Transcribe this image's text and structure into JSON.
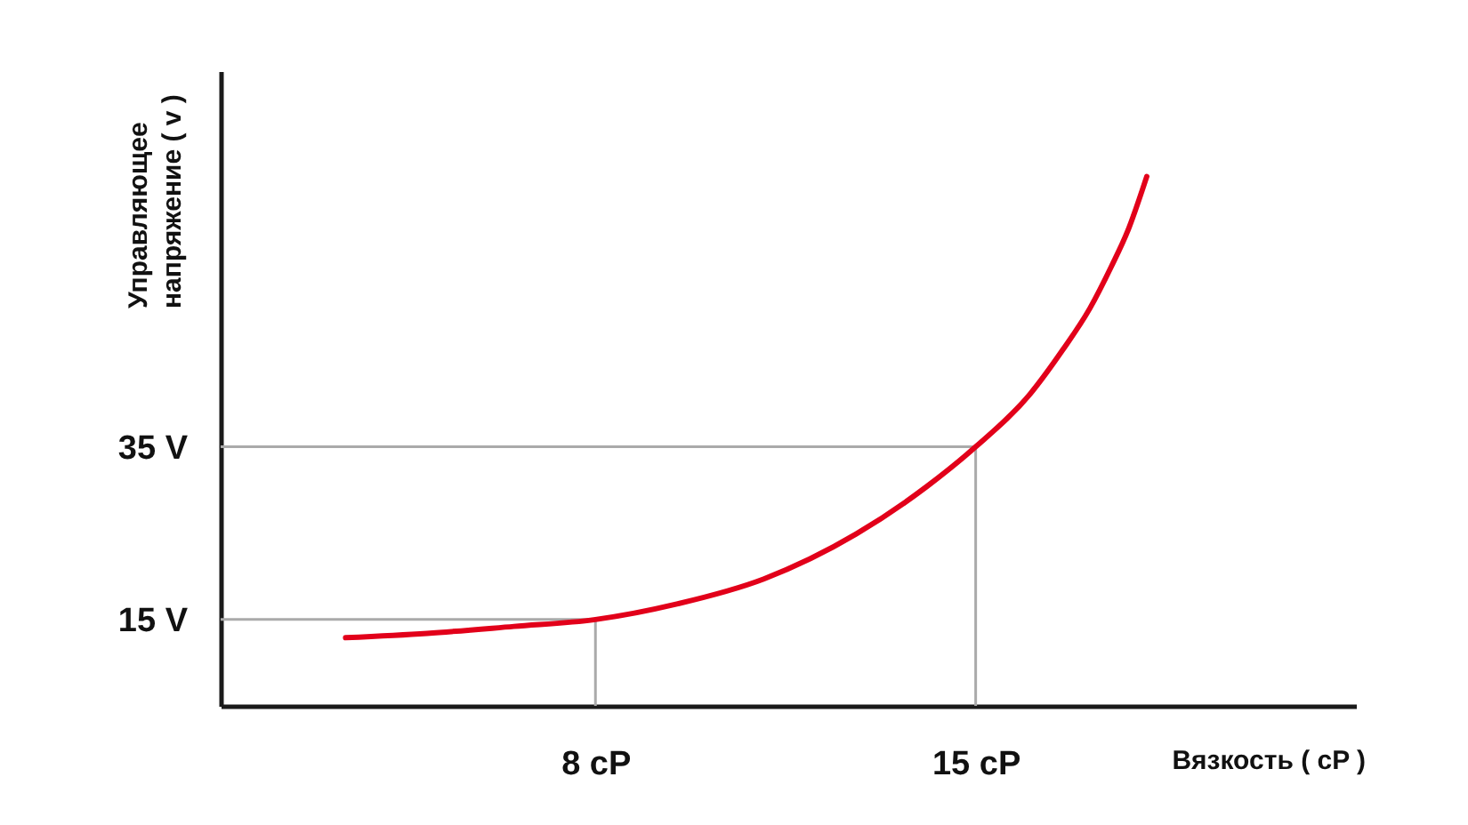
{
  "chart_data": {
    "type": "line",
    "xlabel": "Вязкость ( cP )",
    "ylabel": "Управляющее напряжение ( v )",
    "x": [
      3.4,
      4.9,
      6.5,
      8,
      9.5,
      11.1,
      12.8,
      14.1,
      15,
      16,
      16.6,
      17.1,
      17.5,
      17.8,
      18.15
    ],
    "series": [
      {
        "color": "#e2001a",
        "values": [
          12.9,
          13.4,
          14.2,
          15,
          16.8,
          19.7,
          24.9,
          30.4,
          35,
          41.1,
          46.2,
          51,
          55.9,
          60,
          66.3
        ]
      }
    ],
    "xlim": [
      1.1,
      22
    ],
    "ylim": [
      5,
      78.5
    ],
    "xticks": [
      {
        "value": 8,
        "label": "8 cP"
      },
      {
        "value": 15,
        "label": "15 cP"
      }
    ],
    "yticks": [
      {
        "value": 15,
        "label": "15 V"
      },
      {
        "value": 35,
        "label": "35 V"
      }
    ],
    "ref_lines": [
      {
        "axis": "x",
        "value": 8,
        "color": "#aaaaaa"
      },
      {
        "axis": "x",
        "value": 15,
        "color": "#aaaaaa"
      },
      {
        "axis": "y",
        "value": 15,
        "color": "#aaaaaa"
      },
      {
        "axis": "y",
        "value": 35,
        "color": "#aaaaaa"
      }
    ],
    "grid": false,
    "line_style": "solid",
    "marker": "none"
  }
}
